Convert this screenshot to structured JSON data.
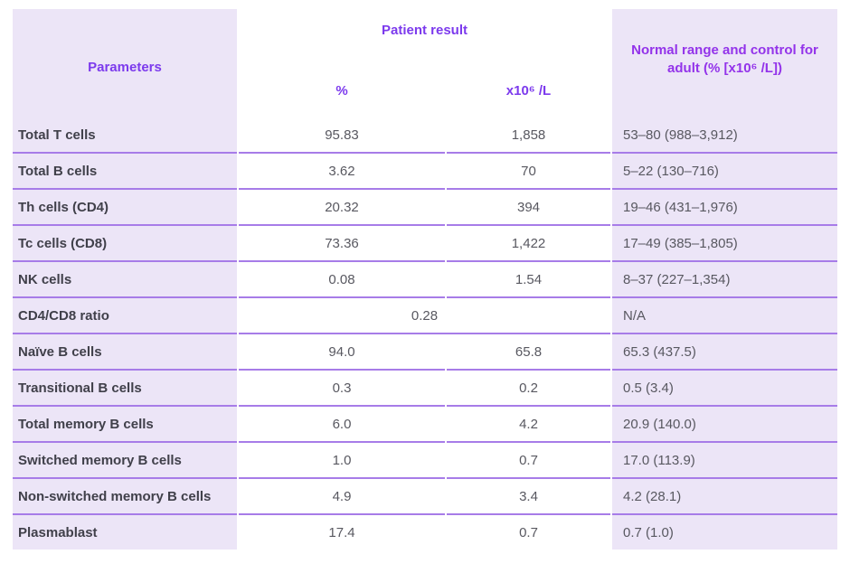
{
  "colors": {
    "header_violet": "#7C3AED",
    "range_header_purple": "#9333EA",
    "row_divider": "#A77CE8",
    "cell_purple_bg": "#ECE5F7",
    "label_text": "#40404A",
    "value_text": "#585860"
  },
  "table": {
    "header": {
      "parameters": "Parameters",
      "patient_result": "Patient result",
      "percent_label": "%",
      "absolute_label": "x10⁶ /L",
      "normal_range": "Normal range and control for adult  (% [x10⁶ /L])"
    },
    "rows": [
      {
        "parameter": "Total T cells",
        "percent": "95.83",
        "absolute": "1,858",
        "normal_range": "53–80 (988–3,912)"
      },
      {
        "parameter": "Total B cells",
        "percent": "3.62",
        "absolute": "70",
        "normal_range": "5–22 (130–716)"
      },
      {
        "parameter": "Th cells (CD4)",
        "percent": "20.32",
        "absolute": "394",
        "normal_range": "19–46 (431–1,976)"
      },
      {
        "parameter": "Tc cells (CD8)",
        "percent": "73.36",
        "absolute": "1,422",
        "normal_range": "17–49 (385–1,805)"
      },
      {
        "parameter": "NK cells",
        "percent": "0.08",
        "absolute": "1.54",
        "normal_range": "8–37 (227–1,354)"
      },
      {
        "parameter": "CD4/CD8 ratio",
        "combined": "0.28",
        "normal_range": "N/A"
      },
      {
        "parameter": "Naïve B cells",
        "percent": "94.0",
        "absolute": "65.8",
        "normal_range": "65.3 (437.5)"
      },
      {
        "parameter": "Transitional B cells",
        "percent": "0.3",
        "absolute": "0.2",
        "normal_range": "0.5 (3.4)"
      },
      {
        "parameter": "Total memory B cells",
        "percent": "6.0",
        "absolute": "4.2",
        "normal_range": "20.9 (140.0)"
      },
      {
        "parameter": "Switched memory B cells",
        "percent": "1.0",
        "absolute": "0.7",
        "normal_range": "17.0 (113.9)"
      },
      {
        "parameter": "Non-switched memory B cells",
        "percent": "4.9",
        "absolute": "3.4",
        "normal_range": "4.2 (28.1)"
      },
      {
        "parameter": "Plasmablast",
        "percent": "17.4",
        "absolute": "0.7",
        "normal_range": "0.7 (1.0)"
      }
    ]
  }
}
